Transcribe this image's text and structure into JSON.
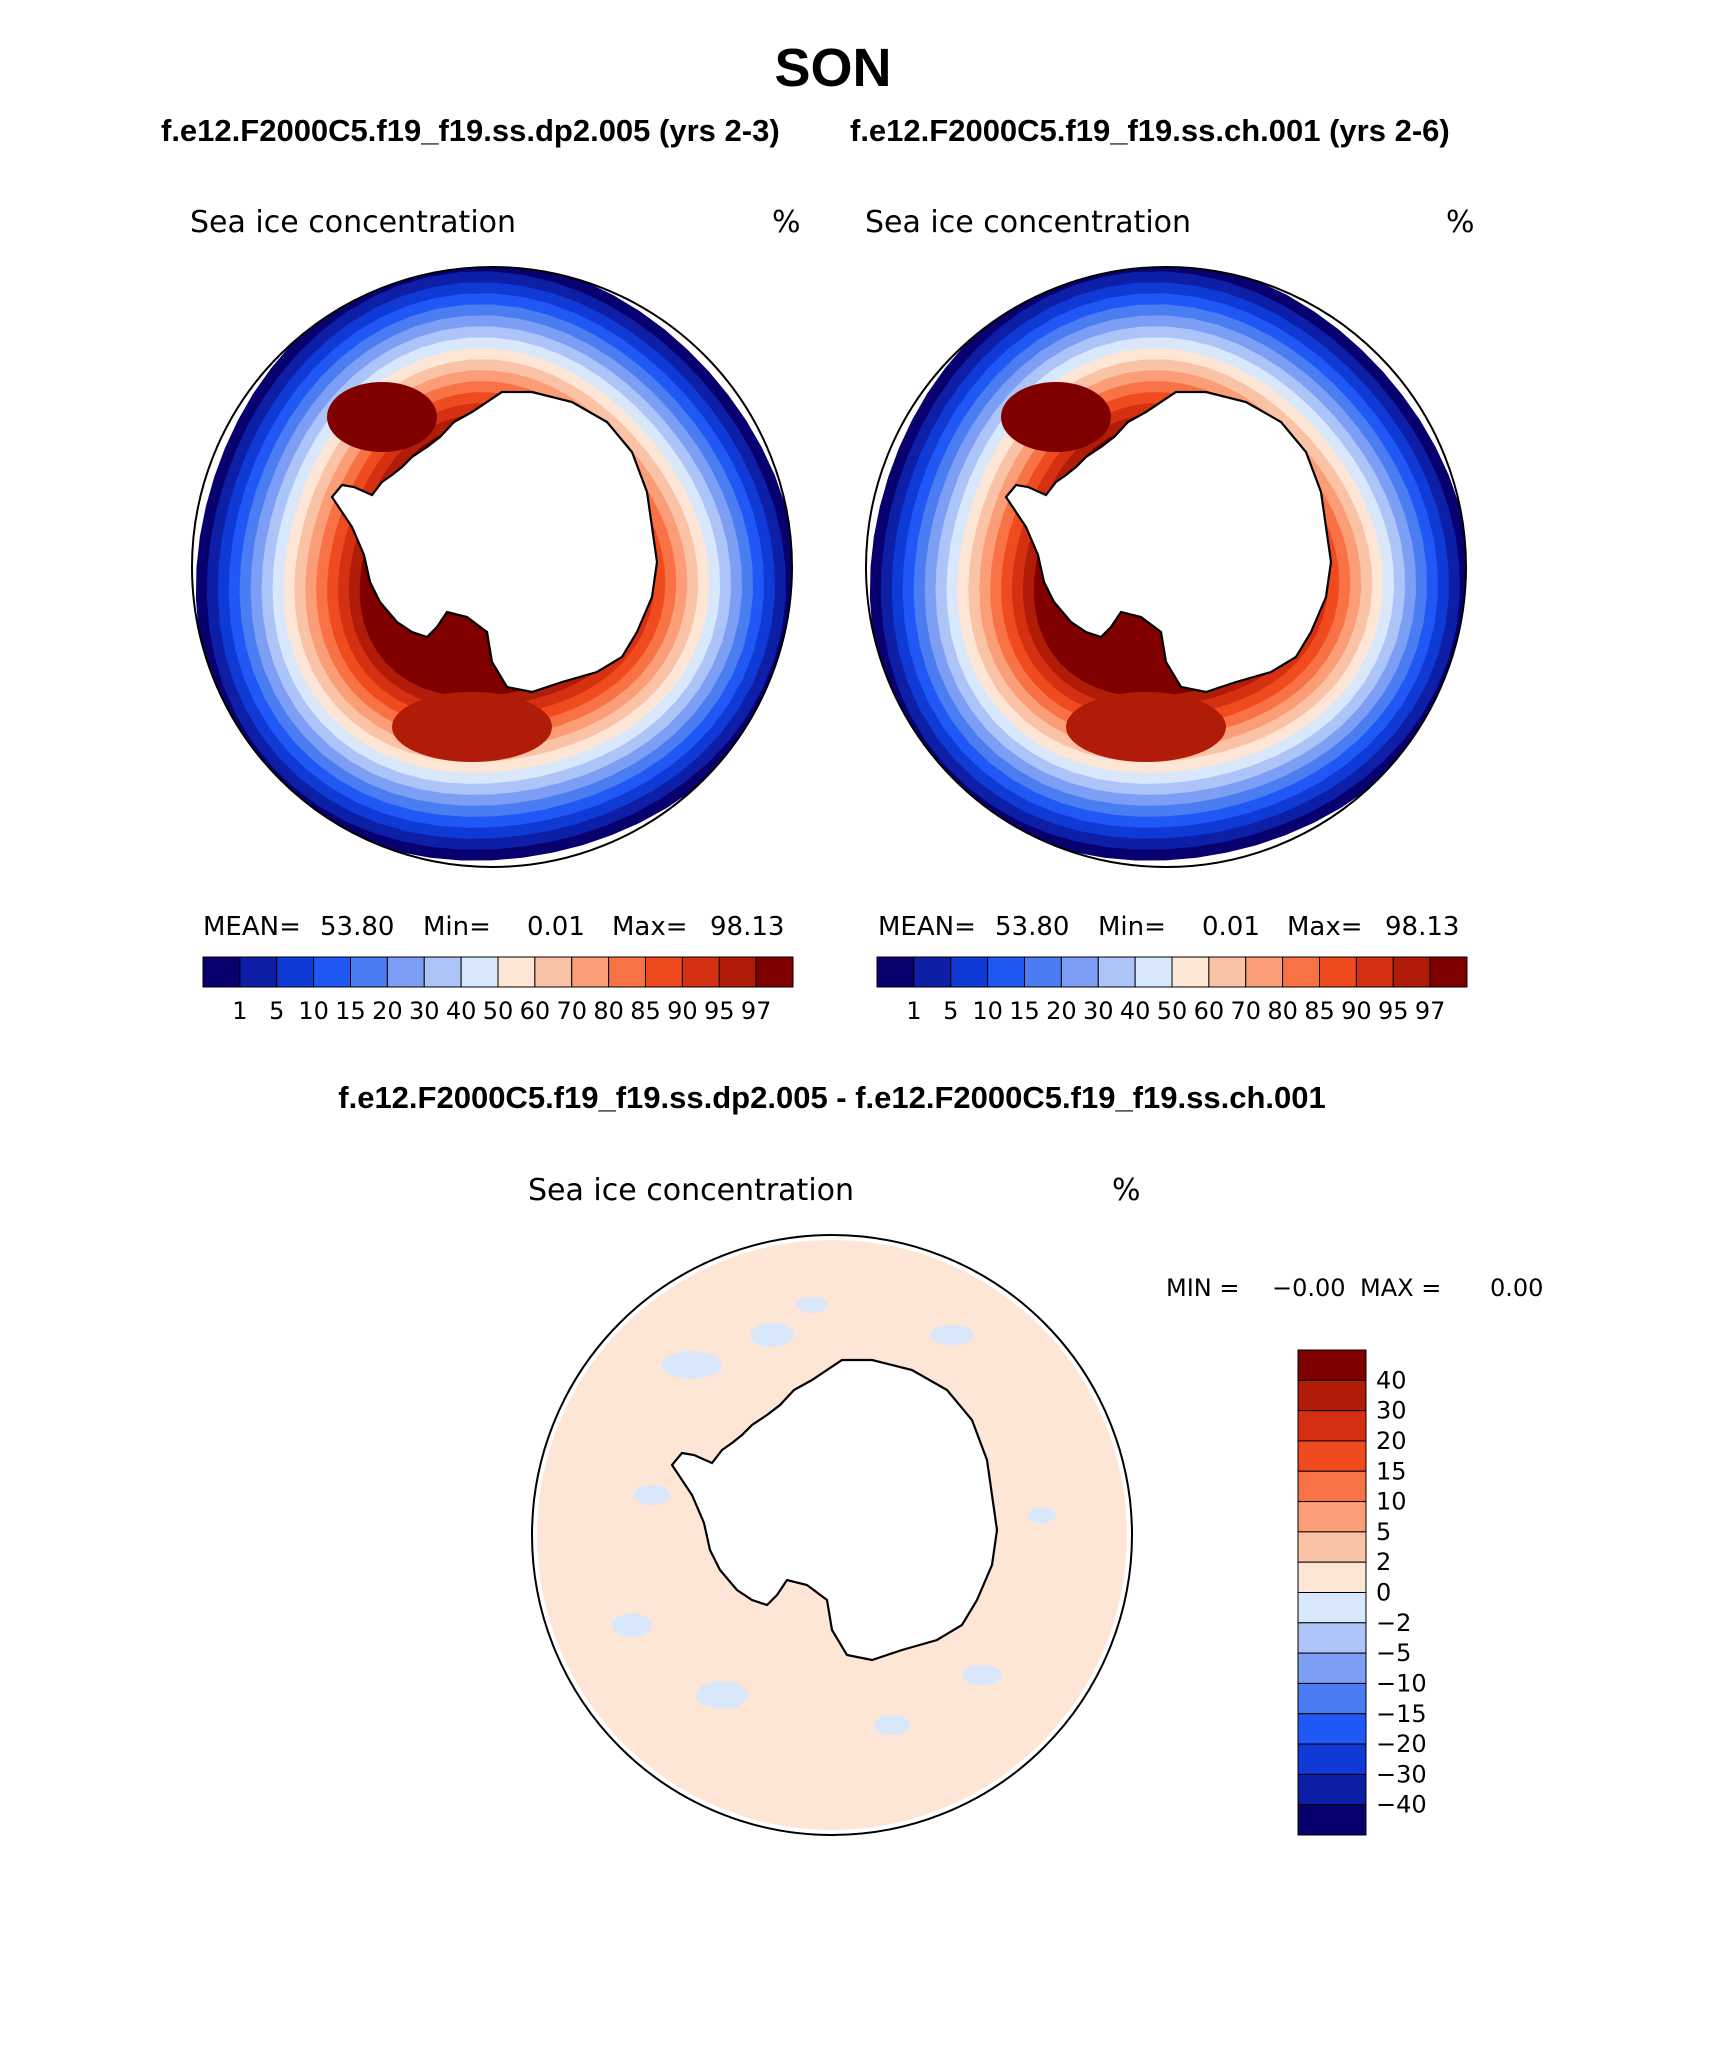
{
  "page_title": "SON",
  "panel_titles": {
    "left": "f.e12.F2000C5.f19_f19.ss.dp2.005 (yrs 2-3)",
    "right": "f.e12.F2000C5.f19_f19.ss.ch.001 (yrs 2-6)",
    "diff": "f.e12.F2000C5.f19_f19.ss.dp2.005 - f.e12.F2000C5.f19_f19.ss.ch.001"
  },
  "chart_data": [
    {
      "type": "heatmap",
      "id": "left",
      "projection": "south-polar-stereographic",
      "variable": "Sea ice concentration",
      "units": "%",
      "stats": {
        "mean_label": "MEAN=",
        "mean": "53.80",
        "min_label": "Min=",
        "min": "0.01",
        "max_label": "Max=",
        "max": "98.13"
      },
      "colorbar": {
        "orientation": "horizontal",
        "levels": [
          "1",
          "5",
          "10",
          "15",
          "20",
          "30",
          "40",
          "50",
          "60",
          "70",
          "80",
          "85",
          "90",
          "95",
          "97"
        ],
        "colors": [
          "#08006e",
          "#0c1fa6",
          "#0f3ad6",
          "#1f58f5",
          "#4a7cf2",
          "#7d9ef5",
          "#adc4f9",
          "#d9e7fb",
          "#fde6d5",
          "#fbc3a6",
          "#fb9e78",
          "#f97245",
          "#f04a1f",
          "#d53012",
          "#b01c08",
          "#800000"
        ]
      },
      "field_description": "ice ring around Antarctica, 95-98% in Weddell and Ross Seas, decreasing to 1-15% at ice edge"
    },
    {
      "type": "heatmap",
      "id": "right",
      "projection": "south-polar-stereographic",
      "variable": "Sea ice concentration",
      "units": "%",
      "stats": {
        "mean_label": "MEAN=",
        "mean": "53.80",
        "min_label": "Min=",
        "min": "0.01",
        "max_label": "Max=",
        "max": "98.13"
      },
      "colorbar": {
        "orientation": "horizontal",
        "levels": [
          "1",
          "5",
          "10",
          "15",
          "20",
          "30",
          "40",
          "50",
          "60",
          "70",
          "80",
          "85",
          "90",
          "95",
          "97"
        ],
        "colors": [
          "#08006e",
          "#0c1fa6",
          "#0f3ad6",
          "#1f58f5",
          "#4a7cf2",
          "#7d9ef5",
          "#adc4f9",
          "#d9e7fb",
          "#fde6d5",
          "#fbc3a6",
          "#fb9e78",
          "#f97245",
          "#f04a1f",
          "#d53012",
          "#b01c08",
          "#800000"
        ]
      }
    },
    {
      "type": "heatmap",
      "id": "diff",
      "projection": "south-polar-stereographic",
      "variable": "Sea ice concentration",
      "units": "%",
      "stats": {
        "min_label": "MIN =",
        "min": "−0.00",
        "max_label": "MAX =",
        "max": "0.00"
      },
      "colorbar": {
        "orientation": "vertical",
        "levels": [
          "40",
          "30",
          "20",
          "15",
          "10",
          "5",
          "2",
          "0",
          "−2",
          "−5",
          "−10",
          "−15",
          "−20",
          "−30",
          "−40"
        ],
        "colors": [
          "#800000",
          "#b01c08",
          "#d53012",
          "#f04a1f",
          "#f97245",
          "#fb9e78",
          "#fbc3a6",
          "#fde6d5",
          "#d9e7fb",
          "#adc4f9",
          "#7d9ef5",
          "#4a7cf2",
          "#1f58f5",
          "#0f3ad6",
          "#0c1fa6",
          "#08006e"
        ]
      }
    }
  ]
}
